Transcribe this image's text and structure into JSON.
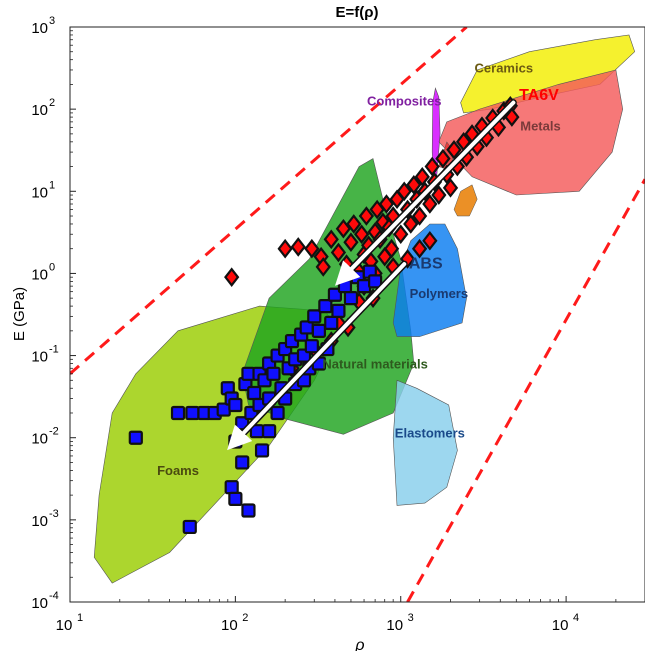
{
  "chart_data": {
    "type": "scatter",
    "title": "E=f(ρ)",
    "xlabel": "ρ",
    "ylabel": "E (GPa)",
    "xscale": "log",
    "yscale": "log",
    "xlim": [
      10,
      30000
    ],
    "ylim": [
      0.0001,
      1000
    ],
    "grid": false,
    "x_ticks": [
      {
        "value": 10,
        "base": "10",
        "exp": "1"
      },
      {
        "value": 100,
        "base": "10",
        "exp": "2"
      },
      {
        "value": 1000,
        "base": "10",
        "exp": "3"
      },
      {
        "value": 10000,
        "base": "10",
        "exp": "4"
      }
    ],
    "y_ticks": [
      {
        "value": 0.0001,
        "base": "10",
        "exp": "-4"
      },
      {
        "value": 0.001,
        "base": "10",
        "exp": "-3"
      },
      {
        "value": 0.01,
        "base": "10",
        "exp": "-2"
      },
      {
        "value": 0.1,
        "base": "10",
        "exp": "-1"
      },
      {
        "value": 1,
        "base": "10",
        "exp": "0"
      },
      {
        "value": 10,
        "base": "10",
        "exp": "1"
      },
      {
        "value": 100,
        "base": "10",
        "exp": "2"
      },
      {
        "value": 1000,
        "base": "10",
        "exp": "3"
      }
    ],
    "regions": [
      {
        "label": "Foams",
        "color": "#9acd00",
        "label_color": "#4a4a10",
        "polygon": [
          [
            14,
            0.00035
          ],
          [
            15,
            0.002
          ],
          [
            18,
            0.02
          ],
          [
            25,
            0.06
          ],
          [
            45,
            0.2
          ],
          [
            140,
            0.4
          ],
          [
            350,
            0.35
          ],
          [
            420,
            0.2
          ],
          [
            300,
            0.05
          ],
          [
            160,
            0.008
          ],
          [
            40,
            0.0004
          ],
          [
            18,
            0.00017
          ]
        ],
        "label_at": [
          45,
          0.0035
        ]
      },
      {
        "label": "Natural materials",
        "color": "#1fa31f",
        "label_color": "#2e5a1e",
        "polygon": [
          [
            110,
            0.06
          ],
          [
            160,
            0.5
          ],
          [
            280,
            1.5
          ],
          [
            560,
            20
          ],
          [
            680,
            25
          ],
          [
            780,
            8
          ],
          [
            1000,
            1.5
          ],
          [
            1150,
            0.2
          ],
          [
            1200,
            0.08
          ],
          [
            900,
            0.02
          ],
          [
            450,
            0.011
          ],
          [
            200,
            0.017
          ],
          [
            120,
            0.025
          ]
        ],
        "label_at": [
          700,
          0.07
        ]
      },
      {
        "label": "Ceramics",
        "color": "#f3ee00",
        "label_color": "#6b5a12",
        "polygon": [
          [
            2300,
            120
          ],
          [
            2900,
            300
          ],
          [
            6000,
            500
          ],
          [
            15000,
            700
          ],
          [
            24000,
            800
          ],
          [
            26000,
            500
          ],
          [
            16000,
            200
          ],
          [
            7000,
            140
          ],
          [
            3500,
            100
          ],
          [
            2400,
            90
          ]
        ],
        "label_at": [
          4200,
          280
        ]
      },
      {
        "label": "Metals",
        "color": "#f45a5a",
        "label_color": "#7a3a3a",
        "polygon": [
          [
            1900,
            70
          ],
          [
            3000,
            100
          ],
          [
            9000,
            200
          ],
          [
            20000,
            300
          ],
          [
            22000,
            100
          ],
          [
            19000,
            30
          ],
          [
            12000,
            10
          ],
          [
            5000,
            9
          ],
          [
            2700,
            15
          ],
          [
            1700,
            40
          ]
        ],
        "label_at": [
          7000,
          55
        ]
      },
      {
        "label": "Composites",
        "color": "#d100ff",
        "label_color": "#8020a0",
        "polygon": [
          [
            1550,
            30
          ],
          [
            1560,
            120
          ],
          [
            1620,
            180
          ],
          [
            1700,
            140
          ],
          [
            1730,
            50
          ],
          [
            1650,
            15
          ],
          [
            1580,
            15
          ]
        ],
        "label_at": [
          1050,
          110
        ]
      },
      {
        "label": "Polymers",
        "color": "#0a7cf0",
        "label_color": "#1a3a70",
        "polygon": [
          [
            900,
            0.25
          ],
          [
            1000,
            1.2
          ],
          [
            1150,
            2.5
          ],
          [
            1500,
            4
          ],
          [
            1850,
            4
          ],
          [
            2200,
            2
          ],
          [
            2500,
            0.5
          ],
          [
            2350,
            0.25
          ],
          [
            1300,
            0.17
          ],
          [
            950,
            0.17
          ]
        ],
        "label_at": [
          1700,
          0.5
        ]
      },
      {
        "label": "Elastomers",
        "color": "#87ceeb",
        "label_color": "#1a4a8a",
        "polygon": [
          [
            950,
            0.05
          ],
          [
            1250,
            0.04
          ],
          [
            1950,
            0.025
          ],
          [
            2200,
            0.007
          ],
          [
            1900,
            0.0025
          ],
          [
            1400,
            0.0016
          ],
          [
            950,
            0.0015
          ],
          [
            900,
            0.01
          ]
        ],
        "label_at": [
          1500,
          0.01
        ]
      }
    ],
    "small_regions": [
      {
        "color": "#e87d00",
        "polygon": [
          [
            2100,
            6
          ],
          [
            2300,
            10
          ],
          [
            2700,
            12
          ],
          [
            2900,
            8
          ],
          [
            2600,
            5
          ],
          [
            2200,
            5
          ]
        ]
      },
      {
        "color": "#e53030",
        "polygon": [
          [
            1700,
            20
          ],
          [
            1900,
            40
          ],
          [
            2100,
            30
          ],
          [
            2000,
            18
          ]
        ]
      }
    ],
    "bounds": [
      {
        "x": [
          10,
          2500
        ],
        "y": [
          0.06,
          1000
        ]
      },
      {
        "x": [
          1100,
          30000
        ],
        "y": [
          0.0001,
          14
        ]
      }
    ],
    "series": [
      {
        "marker": "diamond",
        "color": "#ff0a0a",
        "points": [
          [
            95,
            0.9
          ],
          [
            200,
            2
          ],
          [
            240,
            2.1
          ],
          [
            290,
            2
          ],
          [
            330,
            1.6
          ],
          [
            340,
            1.2
          ],
          [
            380,
            2.6
          ],
          [
            420,
            1.8
          ],
          [
            450,
            3.5
          ],
          [
            470,
            1.3
          ],
          [
            500,
            2.4
          ],
          [
            520,
            4
          ],
          [
            550,
            1.1
          ],
          [
            580,
            3
          ],
          [
            600,
            1.7
          ],
          [
            620,
            5
          ],
          [
            640,
            2.2
          ],
          [
            660,
            1.4
          ],
          [
            700,
            3.2
          ],
          [
            720,
            6
          ],
          [
            750,
            2.6
          ],
          [
            780,
            4.2
          ],
          [
            800,
            1.6
          ],
          [
            820,
            7
          ],
          [
            850,
            3.6
          ],
          [
            880,
            2
          ],
          [
            900,
            5
          ],
          [
            950,
            8
          ],
          [
            1000,
            3
          ],
          [
            1050,
            10
          ],
          [
            1100,
            6
          ],
          [
            1150,
            4
          ],
          [
            1200,
            12
          ],
          [
            1250,
            8
          ],
          [
            1300,
            5
          ],
          [
            1350,
            15
          ],
          [
            1400,
            10
          ],
          [
            1500,
            7
          ],
          [
            1550,
            20
          ],
          [
            1600,
            13
          ],
          [
            1700,
            9
          ],
          [
            1800,
            25
          ],
          [
            1900,
            16
          ],
          [
            2000,
            11
          ],
          [
            2100,
            32
          ],
          [
            2200,
            20
          ],
          [
            2400,
            40
          ],
          [
            2500,
            26
          ],
          [
            2700,
            50
          ],
          [
            2900,
            35
          ],
          [
            3100,
            62
          ],
          [
            3300,
            45
          ],
          [
            3600,
            78
          ],
          [
            3900,
            60
          ],
          [
            4200,
            95
          ],
          [
            4600,
            110
          ],
          [
            4700,
            80
          ],
          [
            1100,
            1.5
          ],
          [
            1300,
            2
          ],
          [
            1500,
            2.5
          ],
          [
            900,
            1.2
          ],
          [
            700,
            1
          ],
          [
            600,
            0.7
          ],
          [
            680,
            0.5
          ],
          [
            420,
            0.25
          ],
          [
            560,
            0.45
          ],
          [
            220,
            0.07
          ],
          [
            380,
            0.15
          ],
          [
            480,
            0.22
          ],
          [
            300,
            0.12
          ]
        ]
      },
      {
        "marker": "square",
        "color": "#1010ff",
        "points": [
          [
            25,
            0.01
          ],
          [
            45,
            0.02
          ],
          [
            55,
            0.02
          ],
          [
            65,
            0.02
          ],
          [
            75,
            0.02
          ],
          [
            85,
            0.022
          ],
          [
            90,
            0.04
          ],
          [
            95,
            0.03
          ],
          [
            100,
            0.025
          ],
          [
            95,
            0.0025
          ],
          [
            100,
            0.0018
          ],
          [
            110,
            0.005
          ],
          [
            115,
            0.045
          ],
          [
            120,
            0.06
          ],
          [
            120,
            0.0013
          ],
          [
            130,
            0.035
          ],
          [
            135,
            0.012
          ],
          [
            140,
            0.06
          ],
          [
            150,
            0.05
          ],
          [
            160,
            0.08
          ],
          [
            170,
            0.06
          ],
          [
            180,
            0.1
          ],
          [
            190,
            0.04
          ],
          [
            200,
            0.12
          ],
          [
            210,
            0.07
          ],
          [
            220,
            0.15
          ],
          [
            230,
            0.09
          ],
          [
            250,
            0.18
          ],
          [
            260,
            0.1
          ],
          [
            270,
            0.22
          ],
          [
            290,
            0.13
          ],
          [
            300,
            0.3
          ],
          [
            320,
            0.2
          ],
          [
            350,
            0.4
          ],
          [
            380,
            0.25
          ],
          [
            400,
            0.55
          ],
          [
            420,
            0.35
          ],
          [
            460,
            0.7
          ],
          [
            500,
            0.5
          ],
          [
            550,
            0.9
          ],
          [
            600,
            0.7
          ],
          [
            650,
            1.05
          ],
          [
            700,
            0.8
          ],
          [
            53,
            0.00082
          ],
          [
            100,
            0.009
          ],
          [
            110,
            0.015
          ],
          [
            125,
            0.02
          ],
          [
            140,
            0.025
          ],
          [
            160,
            0.03
          ],
          [
            180,
            0.02
          ],
          [
            145,
            0.007
          ],
          [
            160,
            0.012
          ],
          [
            200,
            0.03
          ],
          [
            230,
            0.045
          ],
          [
            260,
            0.05
          ],
          [
            280,
            0.07
          ],
          [
            320,
            0.08
          ],
          [
            360,
            0.12
          ]
        ]
      }
    ],
    "arrows": [
      {
        "from": [
          4800,
          120
        ],
        "to": [
          450,
          0.9
        ],
        "color": "#ffffff"
      },
      {
        "from": [
          1050,
          1.3
        ],
        "to": [
          100,
          0.009
        ],
        "color": "#ffffff"
      }
    ],
    "annotations": [
      {
        "text": "TA6V",
        "x": 5200,
        "y": 130,
        "color": "#ff0000"
      },
      {
        "text": "ABS",
        "x": 1120,
        "y": 1.15,
        "color": "#1a3a70"
      }
    ]
  }
}
